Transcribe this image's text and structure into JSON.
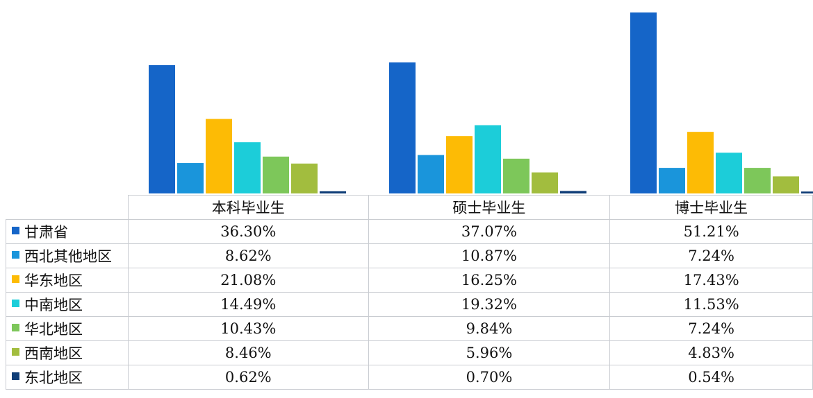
{
  "chart_data": {
    "type": "bar",
    "categories": [
      "本科毕业生",
      "硕士毕业生",
      "博士毕业生"
    ],
    "series": [
      {
        "name": "甘肃省",
        "color": "#1565c8",
        "values": [
          36.3,
          37.07,
          51.21
        ],
        "labels": [
          "36.30%",
          "37.07%",
          "51.21%"
        ]
      },
      {
        "name": "西北其他地区",
        "color": "#1a95db",
        "values": [
          8.62,
          10.87,
          7.24
        ],
        "labels": [
          "8.62%",
          "10.87%",
          "7.24%"
        ]
      },
      {
        "name": "华东地区",
        "color": "#fdbb05",
        "values": [
          21.08,
          16.25,
          17.43
        ],
        "labels": [
          "21.08%",
          "16.25%",
          "17.43%"
        ]
      },
      {
        "name": "中南地区",
        "color": "#1ccdd9",
        "values": [
          14.49,
          19.32,
          11.53
        ],
        "labels": [
          "14.49%",
          "19.32%",
          "11.53%"
        ]
      },
      {
        "name": "华北地区",
        "color": "#7dc75a",
        "values": [
          10.43,
          9.84,
          7.24
        ],
        "labels": [
          "10.43%",
          "9.84%",
          "7.24%"
        ]
      },
      {
        "name": "西南地区",
        "color": "#a2bd3e",
        "values": [
          8.46,
          5.96,
          4.83
        ],
        "labels": [
          "8.46%",
          "5.96%",
          "4.83%"
        ]
      },
      {
        "name": "东北地区",
        "color": "#0f3d77",
        "values": [
          0.62,
          0.7,
          0.54
        ],
        "labels": [
          "0.62%",
          "0.70%",
          "0.54%"
        ]
      }
    ],
    "ylim": [
      0,
      51.21
    ],
    "legend": "table-left",
    "grid": false
  }
}
